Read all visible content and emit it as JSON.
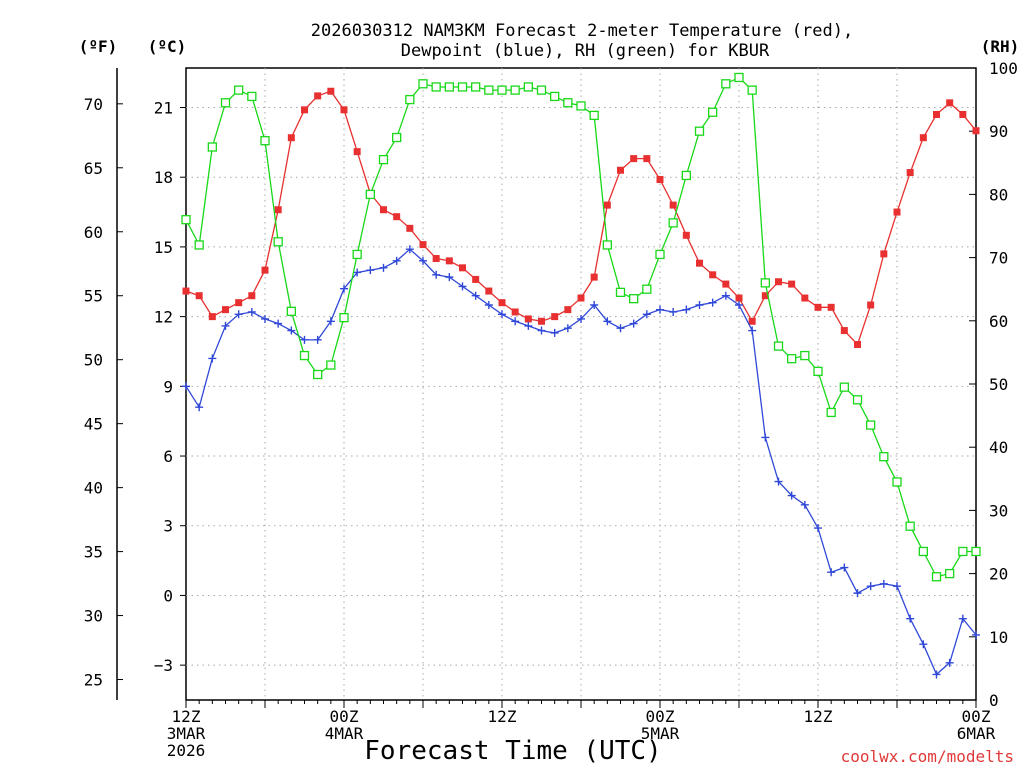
{
  "chart_data": {
    "type": "line",
    "title_line1": "2026030312 NAM3KM Forecast 2-meter Temperature (red),",
    "title_line2": "Dewpoint (blue), RH (green) for KBUR",
    "xlabel": "Forecast Time (UTC)",
    "credit": "coolwx.com/modelts",
    "left_outer_axis": {
      "label": "(ºF)",
      "ylim": [
        23.4,
        72.8
      ],
      "ticks": [
        25,
        30,
        35,
        40,
        45,
        50,
        55,
        60,
        65,
        70
      ]
    },
    "left_inner_axis": {
      "label": "(ºC)",
      "ylim": [
        -4.5,
        22.7
      ],
      "ticks": [
        -3,
        0,
        3,
        6,
        9,
        12,
        15,
        18,
        21
      ],
      "tick_labels": [
        "−3",
        "0",
        "3",
        "6",
        "9",
        "12",
        "15",
        "18",
        "21"
      ]
    },
    "right_axis": {
      "label": "(RH)",
      "ylim": [
        0,
        100
      ],
      "ticks": [
        0,
        10,
        20,
        30,
        40,
        50,
        60,
        70,
        80,
        90,
        100
      ]
    },
    "x_axis": {
      "unit": "forecast hour",
      "xlim": [
        0,
        60
      ],
      "major_ticks": [
        {
          "hour": 0,
          "lines": [
            "12Z",
            "3MAR",
            "2026"
          ]
        },
        {
          "hour": 12,
          "lines": [
            "00Z",
            "4MAR"
          ]
        },
        {
          "hour": 24,
          "lines": [
            "12Z"
          ]
        },
        {
          "hour": 36,
          "lines": [
            "00Z",
            "5MAR"
          ]
        },
        {
          "hour": 48,
          "lines": [
            "12Z"
          ]
        },
        {
          "hour": 60,
          "lines": [
            "00Z",
            "6MAR"
          ]
        }
      ]
    },
    "hours": [
      0,
      1,
      2,
      3,
      4,
      5,
      6,
      7,
      8,
      9,
      10,
      11,
      12,
      13,
      14,
      15,
      16,
      17,
      18,
      19,
      20,
      21,
      22,
      23,
      24,
      25,
      26,
      27,
      28,
      29,
      30,
      31,
      32,
      33,
      34,
      35,
      36,
      37,
      38,
      39,
      40,
      41,
      42,
      43,
      44,
      45,
      46,
      47,
      48,
      49,
      50,
      51,
      52,
      53,
      54,
      55,
      56,
      57,
      58,
      59,
      60
    ],
    "series": [
      {
        "name": "Temperature (°C)",
        "axis": "left_inner_axis",
        "color": "#e83030",
        "marker": "filled-square",
        "values": [
          13.1,
          12.9,
          12.0,
          12.3,
          12.6,
          12.9,
          14.0,
          16.6,
          19.7,
          20.9,
          21.5,
          21.7,
          20.9,
          19.1,
          17.3,
          16.6,
          16.3,
          15.8,
          15.1,
          14.5,
          14.4,
          14.1,
          13.6,
          13.1,
          12.6,
          12.2,
          11.9,
          11.8,
          12.0,
          12.3,
          12.8,
          13.7,
          16.8,
          18.3,
          18.8,
          18.8,
          17.9,
          16.8,
          15.5,
          14.3,
          13.8,
          13.4,
          12.8,
          11.8,
          12.9,
          13.5,
          13.4,
          12.8,
          12.4,
          12.4,
          11.4,
          10.8,
          12.5,
          14.7,
          16.5,
          18.2,
          19.7,
          20.7,
          21.2,
          20.7,
          20.0
        ]
      },
      {
        "name": "Dewpoint (°C)",
        "axis": "left_inner_axis",
        "color": "#3048d8",
        "marker": "plus",
        "values": [
          9.0,
          8.1,
          10.2,
          11.6,
          12.1,
          12.2,
          11.9,
          11.7,
          11.4,
          11.0,
          11.0,
          11.8,
          13.2,
          13.9,
          14.0,
          14.1,
          14.4,
          14.9,
          14.4,
          13.8,
          13.7,
          13.3,
          12.9,
          12.5,
          12.1,
          11.8,
          11.6,
          11.4,
          11.3,
          11.5,
          11.9,
          12.5,
          11.8,
          11.5,
          11.7,
          12.1,
          12.3,
          12.2,
          12.3,
          12.5,
          12.6,
          12.9,
          12.5,
          11.4,
          6.8,
          4.9,
          4.3,
          3.9,
          2.9,
          1.0,
          1.2,
          0.1,
          0.4,
          0.5,
          0.4,
          -1.0,
          -2.1,
          -3.4,
          -2.9,
          -1.0,
          -1.7
        ]
      },
      {
        "name": "RH (%)",
        "axis": "right_axis",
        "color": "#18d818",
        "marker": "open-square",
        "values": [
          76.0,
          72.0,
          87.5,
          94.5,
          96.5,
          95.5,
          88.5,
          72.5,
          61.5,
          54.5,
          51.5,
          53.0,
          60.5,
          70.5,
          80.0,
          85.5,
          89.0,
          95.0,
          97.5,
          97.0,
          97.0,
          97.0,
          97.0,
          96.5,
          96.5,
          96.5,
          97.0,
          96.5,
          95.5,
          94.5,
          94.0,
          92.5,
          72.0,
          64.5,
          63.5,
          65.0,
          70.5,
          75.5,
          83.0,
          90.0,
          93.0,
          97.5,
          98.5,
          96.5,
          66.0,
          56.0,
          54.0,
          54.5,
          52.0,
          45.5,
          49.5,
          47.5,
          43.5,
          38.5,
          34.5,
          27.5,
          23.5,
          19.5,
          20.0,
          23.5,
          23.5
        ]
      }
    ],
    "grid": true
  }
}
